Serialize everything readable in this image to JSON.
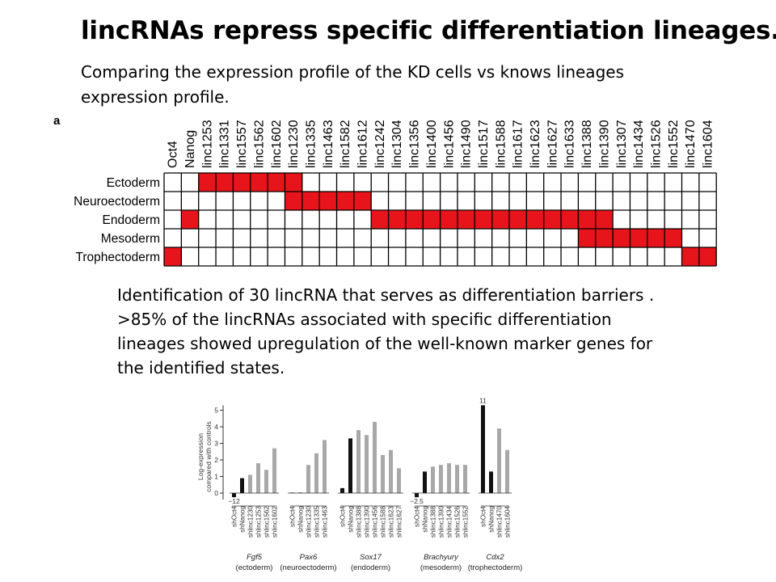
{
  "slide": {
    "title": "lincRNAs repress specific differentiation lineages.",
    "subtitle": "Comparing the expression profile of the KD cells vs knows lineages expression profile.",
    "body": [
      "Identification of 30 lincRNA that serves as differentiation barriers .",
      ">85% of the lincRNAs associated with specific differentiation lineages showed upregulation of the well-known marker genes for the identified states."
    ]
  },
  "colors": {
    "fill_red": "#e8141b",
    "grid_line": "#000000",
    "bar_black": "#111111",
    "bar_grey": "#a8a8a8"
  },
  "chart_data": [
    {
      "type": "heatmap",
      "panel_label": "a",
      "columns": [
        "Oct4",
        "Nanog",
        "linc1253",
        "linc1331",
        "linc1557",
        "linc1562",
        "linc1602",
        "linc1230",
        "linc1335",
        "linc1463",
        "linc1582",
        "linc1612",
        "linc1242",
        "linc1304",
        "linc1356",
        "linc1400",
        "linc1456",
        "linc1490",
        "linc1517",
        "linc1588",
        "linc1617",
        "linc1623",
        "linc1627",
        "linc1633",
        "linc1388",
        "linc1390",
        "linc1307",
        "linc1434",
        "linc1526",
        "linc1552",
        "linc1470",
        "linc1604"
      ],
      "rows": [
        "Ectoderm",
        "Neuroectoderm",
        "Endoderm",
        "Mesoderm",
        "Trophectoderm"
      ],
      "filled": {
        "Ectoderm": [
          "linc1253",
          "linc1331",
          "linc1557",
          "linc1562",
          "linc1602",
          "linc1230"
        ],
        "Neuroectoderm": [
          "linc1230",
          "linc1335",
          "linc1463",
          "linc1582",
          "linc1612"
        ],
        "Endoderm": [
          "Nanog",
          "linc1242",
          "linc1304",
          "linc1356",
          "linc1400",
          "linc1456",
          "linc1490",
          "linc1517",
          "linc1588",
          "linc1617",
          "linc1623",
          "linc1627",
          "linc1633",
          "linc1388",
          "linc1390"
        ],
        "Mesoderm": [
          "linc1388",
          "linc1390",
          "linc1307",
          "linc1434",
          "linc1526",
          "linc1552"
        ],
        "Trophectoderm": [
          "Oct4",
          "linc1470",
          "linc1604"
        ]
      }
    },
    {
      "type": "bar",
      "ylabel": "Log-expression compared with controls",
      "yticks": [
        0,
        1,
        2,
        3,
        4,
        5
      ],
      "ylim": [
        -0.3,
        5.3
      ],
      "groups": [
        {
          "gene": "Fgf5",
          "lineage": "(ectoderm)",
          "bars": [
            {
              "label": "shOct4",
              "value": -0.25,
              "kind": "control",
              "annotation": "−12"
            },
            {
              "label": "shNanog",
              "value": 0.9,
              "kind": "control"
            },
            {
              "label": "shlinc1230",
              "value": 1.1,
              "kind": "linc"
            },
            {
              "label": "shlinc1253",
              "value": 1.8,
              "kind": "linc"
            },
            {
              "label": "shlinc1562",
              "value": 1.4,
              "kind": "linc"
            },
            {
              "label": "shlinc1602",
              "value": 2.7,
              "kind": "linc"
            }
          ]
        },
        {
          "gene": "Pax6",
          "lineage": "(neuroectoderm)",
          "bars": [
            {
              "label": "shOct4",
              "value": 0.03,
              "kind": "control"
            },
            {
              "label": "shNanog",
              "value": 0.03,
              "kind": "control"
            },
            {
              "label": "shlinc1230",
              "value": 1.7,
              "kind": "linc"
            },
            {
              "label": "shlinc1335",
              "value": 2.4,
              "kind": "linc"
            },
            {
              "label": "shlinc1463",
              "value": 3.2,
              "kind": "linc"
            }
          ]
        },
        {
          "gene": "Sox17",
          "lineage": "(endoderm)",
          "bars": [
            {
              "label": "shOct4",
              "value": 0.3,
              "kind": "control"
            },
            {
              "label": "shNanog",
              "value": 3.3,
              "kind": "control"
            },
            {
              "label": "shlinc1388",
              "value": 3.8,
              "kind": "linc"
            },
            {
              "label": "shlinc1390",
              "value": 3.5,
              "kind": "linc"
            },
            {
              "label": "shlinc1456",
              "value": 4.3,
              "kind": "linc"
            },
            {
              "label": "shlinc1588",
              "value": 2.3,
              "kind": "linc"
            },
            {
              "label": "shlinc1623",
              "value": 2.6,
              "kind": "linc"
            },
            {
              "label": "shlinc1627",
              "value": 1.5,
              "kind": "linc"
            }
          ]
        },
        {
          "gene": "Brachyury",
          "lineage": "(mesoderm)",
          "bars": [
            {
              "label": "shOct4",
              "value": -0.25,
              "kind": "control",
              "annotation": "−2.5"
            },
            {
              "label": "shNanog",
              "value": 1.3,
              "kind": "control"
            },
            {
              "label": "shlinc1388",
              "value": 1.6,
              "kind": "linc"
            },
            {
              "label": "shlinc1390",
              "value": 1.7,
              "kind": "linc"
            },
            {
              "label": "shlinc1434",
              "value": 1.8,
              "kind": "linc"
            },
            {
              "label": "shlinc1526",
              "value": 1.7,
              "kind": "linc"
            },
            {
              "label": "shlinc1552",
              "value": 1.7,
              "kind": "linc"
            }
          ]
        },
        {
          "gene": "Cdx2",
          "lineage": "(trophectoderm)",
          "bars": [
            {
              "label": "shOct4",
              "value": 5.3,
              "kind": "control",
              "annotation": "11"
            },
            {
              "label": "shNanog",
              "value": 1.3,
              "kind": "control"
            },
            {
              "label": "shlinc1470",
              "value": 3.9,
              "kind": "linc"
            },
            {
              "label": "shlinc1604",
              "value": 2.6,
              "kind": "linc"
            }
          ]
        }
      ]
    }
  ]
}
